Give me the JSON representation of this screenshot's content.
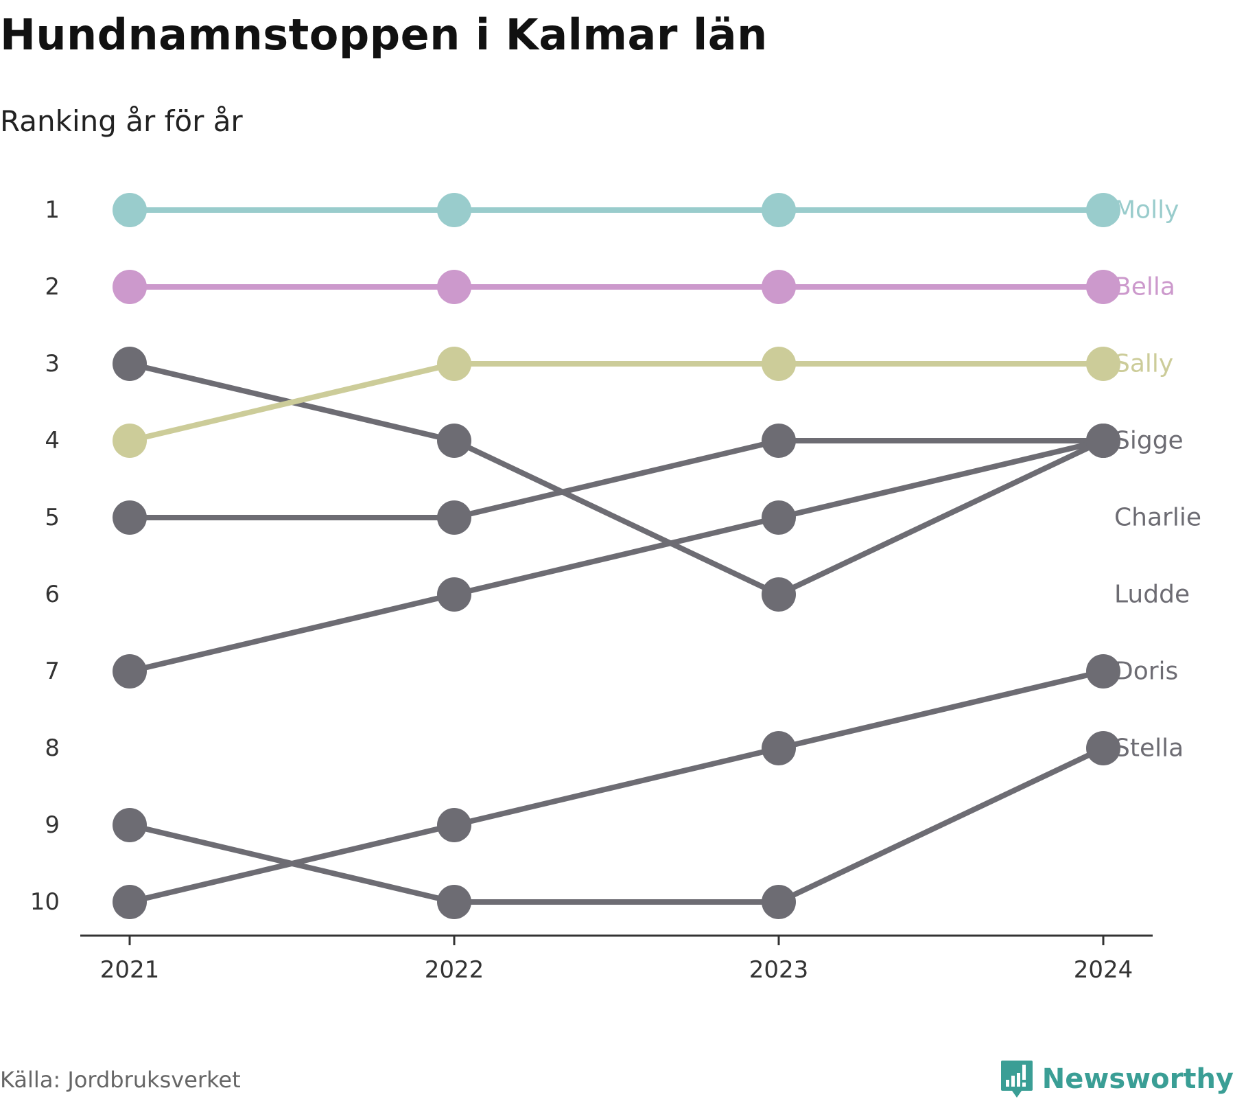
{
  "title": "Hundnamnstoppen i Kalmar län",
  "subtitle": "Ranking år för år",
  "source": "Källa: Jordbruksverket",
  "brand": {
    "name": "Newsworthy",
    "icon": "newsworthy-bar-chart-icon",
    "color": "#3a9e95"
  },
  "chart_data": {
    "type": "line",
    "x": [
      "2021",
      "2022",
      "2023",
      "2024"
    ],
    "y_ticks": [
      "1",
      "2",
      "3",
      "4",
      "5",
      "6",
      "7",
      "8",
      "9",
      "10"
    ],
    "ylim": [
      1,
      10
    ],
    "y_inverted": true,
    "grid": false,
    "series": [
      {
        "name": "Molly",
        "values": [
          1,
          1,
          1,
          1
        ],
        "color": "#99cccc"
      },
      {
        "name": "Bella",
        "values": [
          2,
          2,
          2,
          2
        ],
        "color": "#cc99cc"
      },
      {
        "name": "Sally",
        "values": [
          4,
          3,
          3,
          3
        ],
        "color": "#cccc99"
      },
      {
        "name": "Sigge",
        "values": [
          5,
          5,
          4,
          4
        ],
        "color": "#6d6c73"
      },
      {
        "name": "Charlie",
        "values": [
          7,
          6,
          5,
          4
        ],
        "color": "#6d6c73"
      },
      {
        "name": "Ludde",
        "values": [
          3,
          4,
          6,
          4
        ],
        "color": "#6d6c73"
      },
      {
        "name": "Doris",
        "values": [
          10,
          9,
          8,
          7
        ],
        "color": "#6d6c73"
      },
      {
        "name": "Stella",
        "values": [
          9,
          10,
          10,
          8
        ],
        "color": "#6d6c73"
      }
    ]
  }
}
